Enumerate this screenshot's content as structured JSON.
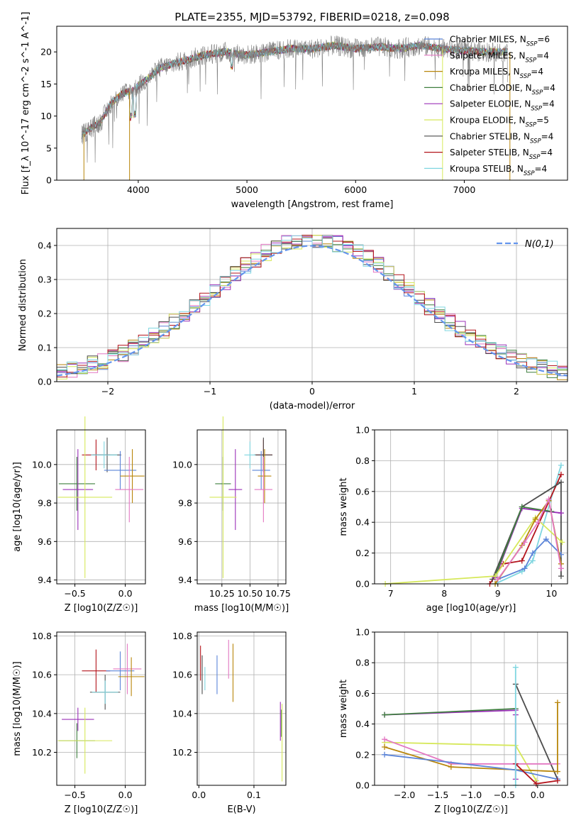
{
  "figure": {
    "title": "PLATE=2355, MJD=53792, FIBERID=0218, z=0.098"
  },
  "colors": {
    "chabrier_miles": "#5b84d8",
    "salpeter_miles": "#e377c2",
    "kroupa_miles": "#b8860b",
    "chabrier_elodie": "#3f7f3f",
    "salpeter_elodie": "#9b30b8",
    "kroupa_elodie": "#d6e85a",
    "chabrier_stelib": "#4d4d4d",
    "salpeter_stelib": "#b3141c",
    "kroupa_stelib": "#7fd6e0",
    "data": "#808080",
    "norm_curve": "#6495ed",
    "grid": "#b0b0b0"
  },
  "legend_entries": [
    "Chabrier MILES, N_SSP=6",
    "Salpeter MILES, N_SSP=4",
    "Kroupa MILES, N_SSP=4",
    "Chabrier ELODIE, N_SSP=4",
    "Salpeter ELODIE, N_SSP=4",
    "Kroupa ELODIE, N_SSP=5",
    "Chabrier STELIB, N_SSP=4",
    "Salpeter STELIB, N_SSP=4",
    "Kroupa STELIB, N_SSP=4"
  ],
  "chart_data": [
    {
      "id": "spectrum",
      "type": "line",
      "xlabel": "wavelength [Angstrom, rest frame]",
      "ylabel": "Flux [f_λ 10^-17 erg cm^-2 s^-1 A^-1]",
      "xlim": [
        3250,
        7950
      ],
      "ylim": [
        0,
        24
      ],
      "xticks": [
        4000,
        5000,
        6000,
        7000
      ],
      "yticks": [
        0,
        5,
        10,
        15,
        20
      ],
      "continuum": [
        [
          3480,
          7
        ],
        [
          3550,
          8
        ],
        [
          3650,
          9
        ],
        [
          3750,
          12
        ],
        [
          3850,
          13.5
        ],
        [
          3950,
          14
        ],
        [
          4100,
          16
        ],
        [
          4200,
          17.5
        ],
        [
          4400,
          18.5
        ],
        [
          4600,
          19.5
        ],
        [
          4800,
          20
        ],
        [
          5000,
          19.5
        ],
        [
          5200,
          20
        ],
        [
          5400,
          20.5
        ],
        [
          5600,
          20.5
        ],
        [
          5800,
          21
        ],
        [
          6000,
          20.5
        ],
        [
          6200,
          20.8
        ],
        [
          6400,
          20.5
        ],
        [
          6600,
          21
        ],
        [
          6800,
          20.5
        ],
        [
          7000,
          20.2
        ],
        [
          7200,
          20
        ],
        [
          7400,
          20
        ]
      ],
      "legend": "upper right",
      "grid": false
    },
    {
      "id": "residual_histogram",
      "type": "line",
      "xlabel": "(data-model)/error",
      "ylabel": "Normed distribution",
      "xlim": [
        -2.5,
        2.5
      ],
      "ylim": [
        0,
        0.45
      ],
      "xticks": [
        -2,
        -1,
        0,
        1,
        2
      ],
      "yticks": [
        0.0,
        0.1,
        0.2,
        0.3,
        0.4
      ],
      "bin_width": 0.1,
      "profile_sigma": 1,
      "profile_peak": 0.4,
      "series": [
        {
          "name": "N(0,1)",
          "function": "standard normal"
        }
      ],
      "legend": "upper right",
      "grid": true
    },
    {
      "id": "age_vs_Z",
      "type": "scatter",
      "xlabel": "Z [log10(Z/Z☉)]",
      "ylabel": "age [log10(age/yr)]",
      "xlim": [
        -0.68,
        0.2
      ],
      "ylim": [
        9.38,
        10.18
      ],
      "xticks": [
        -0.5,
        0.0
      ],
      "yticks": [
        9.4,
        9.6,
        9.8,
        10.0
      ],
      "points": [
        {
          "x": -0.29,
          "xerr": 0.14,
          "y": 10.05,
          "yerr": 0.08,
          "color": "salpeter_stelib"
        },
        {
          "x": -0.18,
          "xerr": 0.14,
          "y": 10.05,
          "yerr": 0.09,
          "color": "chabrier_stelib"
        },
        {
          "x": -0.21,
          "xerr": 0.13,
          "y": 10.05,
          "yerr": 0.07,
          "color": "kroupa_stelib"
        },
        {
          "x": -0.05,
          "xerr": 0.16,
          "y": 9.97,
          "yerr": 0.1,
          "color": "chabrier_miles"
        },
        {
          "x": 0.07,
          "xerr": 0.12,
          "y": 9.94,
          "yerr": 0.14,
          "color": "kroupa_miles"
        },
        {
          "x": 0.04,
          "xerr": 0.14,
          "y": 9.87,
          "yerr": 0.17,
          "color": "salpeter_miles"
        },
        {
          "x": -0.48,
          "xerr": 0.18,
          "y": 9.9,
          "yerr": 0.14,
          "color": "chabrier_elodie"
        },
        {
          "x": -0.47,
          "xerr": 0.15,
          "y": 9.87,
          "yerr": 0.21,
          "color": "salpeter_elodie"
        },
        {
          "x": -0.4,
          "xerr": 0.27,
          "y": 9.83,
          "yerr": 0.42,
          "color": "kroupa_elodie"
        }
      ],
      "grid": true
    },
    {
      "id": "age_vs_mass",
      "type": "scatter",
      "xlabel": "mass [log10(M/M☉)]",
      "ylabel": "",
      "xlim": [
        10.03,
        10.82
      ],
      "ylim": [
        9.38,
        10.18
      ],
      "xticks": [
        10.25,
        10.5,
        10.75
      ],
      "yticks": [
        9.4,
        9.6,
        9.8,
        10.0
      ],
      "points": [
        {
          "x": 10.62,
          "xerr": 0.08,
          "y": 10.05,
          "yerr": 0.08,
          "color": "salpeter_stelib"
        },
        {
          "x": 10.62,
          "xerr": 0.08,
          "y": 10.05,
          "yerr": 0.09,
          "color": "chabrier_stelib"
        },
        {
          "x": 10.5,
          "xerr": 0.05,
          "y": 10.05,
          "yerr": 0.07,
          "color": "kroupa_stelib"
        },
        {
          "x": 10.6,
          "xerr": 0.08,
          "y": 9.97,
          "yerr": 0.1,
          "color": "chabrier_miles"
        },
        {
          "x": 10.63,
          "xerr": 0.06,
          "y": 9.94,
          "yerr": 0.14,
          "color": "kroupa_miles"
        },
        {
          "x": 10.62,
          "xerr": 0.08,
          "y": 9.87,
          "yerr": 0.17,
          "color": "salpeter_miles"
        },
        {
          "x": 10.26,
          "xerr": 0.07,
          "y": 9.9,
          "yerr": 0.14,
          "color": "chabrier_elodie"
        },
        {
          "x": 10.37,
          "xerr": 0.06,
          "y": 9.87,
          "yerr": 0.21,
          "color": "salpeter_elodie"
        },
        {
          "x": 10.26,
          "xerr": 0.12,
          "y": 9.83,
          "yerr": 0.42,
          "color": "kroupa_elodie"
        }
      ],
      "grid": true
    },
    {
      "id": "mass_weight_vs_age",
      "type": "line",
      "xlabel": "age [log10(age/yr)]",
      "ylabel": "mass weight",
      "xlim": [
        6.7,
        10.3
      ],
      "ylim": [
        0,
        1
      ],
      "xticks": [
        7,
        8,
        9,
        10
      ],
      "yticks": [
        0.0,
        0.2,
        0.4,
        0.6,
        0.8,
        1.0
      ],
      "series": [
        {
          "color": "kroupa_stelib",
          "x": [
            8.95,
            9.45,
            9.65,
            10.18
          ],
          "y": [
            0.0,
            0.08,
            0.15,
            0.77
          ]
        },
        {
          "color": "salpeter_stelib",
          "x": [
            8.85,
            9.1,
            9.45,
            10.18
          ],
          "y": [
            0.0,
            0.13,
            0.15,
            0.71
          ]
        },
        {
          "color": "chabrier_stelib",
          "x": [
            8.9,
            9.45,
            10.18,
            10.18
          ],
          "y": [
            0.03,
            0.5,
            0.66,
            0.05
          ]
        },
        {
          "color": "chabrier_miles",
          "x": [
            9.0,
            9.5,
            9.65,
            9.9,
            10.18
          ],
          "y": [
            0.03,
            0.1,
            0.2,
            0.29,
            0.19
          ]
        },
        {
          "color": "salpeter_elodie",
          "x": [
            8.95,
            9.45,
            10.18
          ],
          "y": [
            0.04,
            0.49,
            0.46
          ]
        },
        {
          "color": "chabrier_elodie",
          "x": [
            8.95,
            9.45,
            10.0
          ],
          "y": [
            0.05,
            0.5,
            0.47
          ]
        },
        {
          "color": "kroupa_elodie",
          "x": [
            6.9,
            8.95,
            9.7,
            10.2
          ],
          "y": [
            0.0,
            0.05,
            0.43,
            0.27
          ]
        },
        {
          "color": "kroupa_miles",
          "x": [
            8.95,
            9.45,
            9.7,
            9.95,
            10.18
          ],
          "y": [
            0.0,
            0.25,
            0.42,
            0.54,
            0.13
          ]
        },
        {
          "color": "salpeter_miles",
          "x": [
            9.0,
            9.5,
            9.75,
            9.95,
            10.18
          ],
          "y": [
            0.03,
            0.27,
            0.4,
            0.55,
            0.1
          ]
        }
      ],
      "grid": true
    },
    {
      "id": "mass_vs_Z",
      "type": "scatter",
      "xlabel": "Z [log10(Z/Z☉)]",
      "ylabel": "mass [log10(M/M☉)]",
      "xlim": [
        -0.68,
        0.2
      ],
      "ylim": [
        10.03,
        10.82
      ],
      "xticks": [
        -0.5,
        0.0
      ],
      "yticks": [
        10.2,
        10.4,
        10.6,
        10.8
      ],
      "points": [
        {
          "x": -0.29,
          "xerr": 0.14,
          "y": 10.62,
          "yerr": 0.11,
          "color": "salpeter_stelib"
        },
        {
          "x": -0.2,
          "xerr": 0.15,
          "y": 10.51,
          "yerr": 0.09,
          "color": "chabrier_stelib"
        },
        {
          "x": -0.2,
          "xerr": 0.13,
          "y": 10.51,
          "yerr": 0.06,
          "color": "kroupa_stelib"
        },
        {
          "x": -0.05,
          "xerr": 0.14,
          "y": 10.62,
          "yerr": 0.1,
          "color": "chabrier_miles"
        },
        {
          "x": 0.02,
          "xerr": 0.14,
          "y": 10.63,
          "yerr": 0.13,
          "color": "salpeter_miles"
        },
        {
          "x": 0.06,
          "xerr": 0.13,
          "y": 10.59,
          "yerr": 0.1,
          "color": "kroupa_miles"
        },
        {
          "x": -0.48,
          "xerr": 0.18,
          "y": 10.26,
          "yerr": 0.09,
          "color": "chabrier_elodie"
        },
        {
          "x": -0.47,
          "xerr": 0.16,
          "y": 10.37,
          "yerr": 0.06,
          "color": "salpeter_elodie"
        },
        {
          "x": -0.4,
          "xerr": 0.27,
          "y": 10.26,
          "yerr": 0.17,
          "color": "kroupa_elodie"
        }
      ],
      "grid": true
    },
    {
      "id": "mass_vs_ebv",
      "type": "scatter",
      "xlabel": "E(B-V)",
      "ylabel": "",
      "xlim": [
        -0.003,
        0.158
      ],
      "ylim": [
        10.03,
        10.82
      ],
      "xticks": [
        0.0,
        0.1
      ],
      "yticks": [
        10.2,
        10.4,
        10.6,
        10.8
      ],
      "points": [
        {
          "x": 0.003,
          "y": 10.66,
          "yerr": 0.09,
          "color": "salpeter_stelib"
        },
        {
          "x": 0.006,
          "y": 10.6,
          "yerr": 0.1,
          "color": "chabrier_stelib"
        },
        {
          "x": 0.011,
          "y": 10.58,
          "yerr": 0.06,
          "color": "kroupa_stelib"
        },
        {
          "x": 0.033,
          "y": 10.6,
          "yerr": 0.1,
          "color": "chabrier_miles"
        },
        {
          "x": 0.054,
          "y": 10.68,
          "yerr": 0.1,
          "color": "salpeter_miles"
        },
        {
          "x": 0.062,
          "y": 10.61,
          "yerr": 0.15,
          "color": "kroupa_miles"
        },
        {
          "x": 0.148,
          "y": 10.36,
          "yerr": 0.1,
          "color": "salpeter_elodie"
        },
        {
          "x": 0.15,
          "y": 10.35,
          "yerr": 0.07,
          "color": "chabrier_elodie"
        },
        {
          "x": 0.151,
          "y": 10.25,
          "yerr": 0.2,
          "color": "kroupa_elodie"
        }
      ],
      "grid": true
    },
    {
      "id": "mass_weight_vs_Z",
      "type": "line",
      "xlabel": "Z [log10(Z/Z☉)]",
      "ylabel": "mass weight",
      "xlim": [
        -2.45,
        0.45
      ],
      "ylim": [
        0,
        1
      ],
      "xticks": [
        -2.0,
        -1.5,
        -1.0,
        -0.5,
        0.0
      ],
      "yticks": [
        0.0,
        0.2,
        0.4,
        0.6,
        0.8,
        1.0
      ],
      "series": [
        {
          "color": "salpeter_elodie",
          "x": [
            -2.3,
            -0.33,
            -0.33,
            -0.33
          ],
          "y": [
            0.46,
            0.49,
            0.46,
            0.04
          ]
        },
        {
          "color": "chabrier_elodie",
          "x": [
            -2.3,
            -0.33
          ],
          "y": [
            0.46,
            0.5
          ]
        },
        {
          "color": "chabrier_stelib",
          "x": [
            -0.33,
            0.3
          ],
          "y": [
            0.66,
            0.04
          ]
        },
        {
          "color": "kroupa_elodie",
          "x": [
            -2.3,
            -0.33,
            -0.02
          ],
          "y": [
            0.28,
            0.26,
            0.03
          ]
        },
        {
          "color": "salpeter_miles",
          "x": [
            -2.3,
            -1.3,
            0.3
          ],
          "y": [
            0.3,
            0.14,
            0.14
          ]
        },
        {
          "color": "kroupa_miles",
          "x": [
            -2.3,
            -1.3,
            0.3,
            0.3
          ],
          "y": [
            0.25,
            0.12,
            0.09,
            0.54
          ]
        },
        {
          "color": "chabrier_miles",
          "x": [
            -2.3,
            -0.33,
            0.3
          ],
          "y": [
            0.2,
            0.1,
            0.04
          ]
        },
        {
          "color": "salpeter_stelib",
          "x": [
            -0.33,
            -0.02,
            0.3
          ],
          "y": [
            0.14,
            0.01,
            0.03
          ]
        },
        {
          "color": "kroupa_stelib",
          "x": [
            -0.33,
            -0.33
          ],
          "y": [
            0.77,
            0.0
          ]
        }
      ],
      "grid": true
    }
  ]
}
